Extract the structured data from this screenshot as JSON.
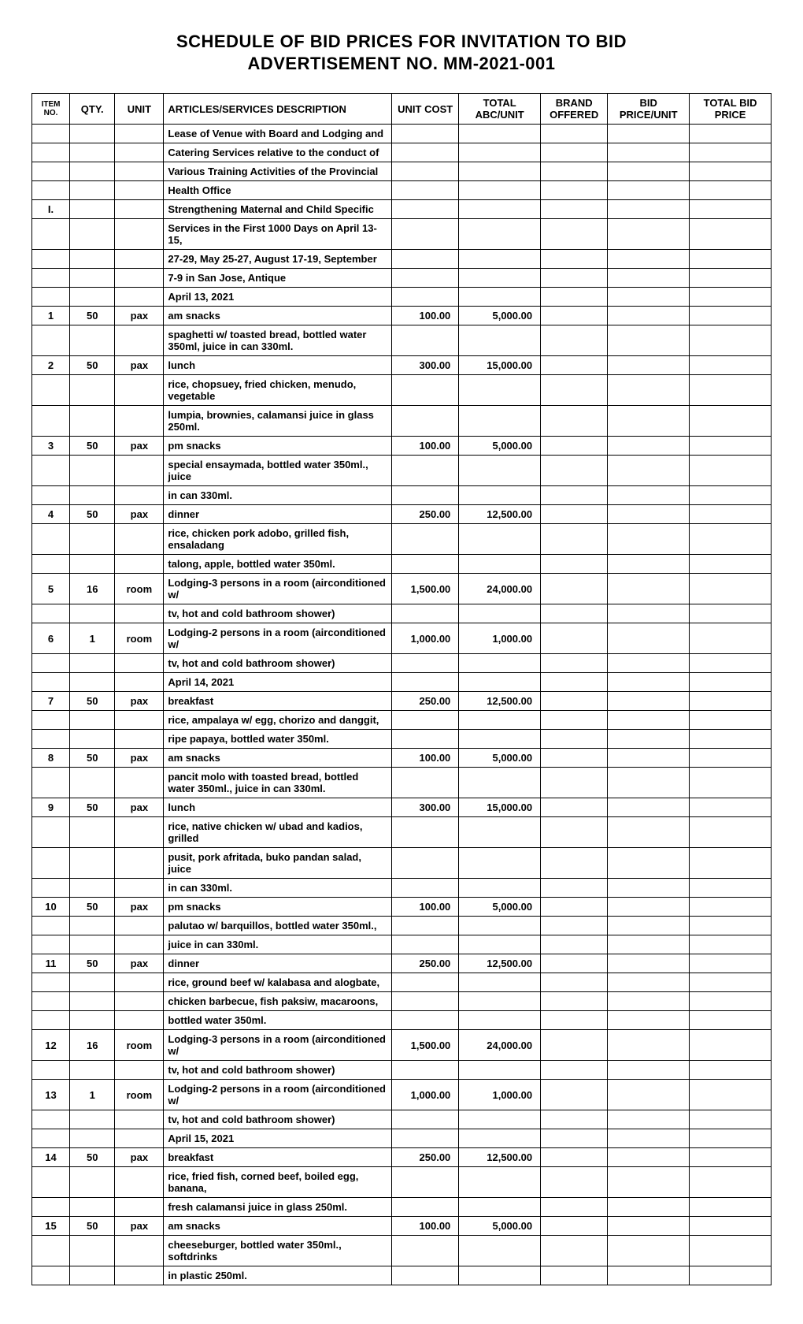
{
  "title": "SCHEDULE OF BID PRICES FOR INVITATION TO BID",
  "subtitle": "ADVERTISEMENT NO. MM-2021-001",
  "headers": {
    "item": "ITEM NO.",
    "qty": "QTY.",
    "unit": "UNIT",
    "desc": "ARTICLES/SERVICES DESCRIPTION",
    "cost": "UNIT COST",
    "abc": "TOTAL ABC/UNIT",
    "brand": "BRAND OFFERED",
    "bid": "BID PRICE/UNIT",
    "total": "TOTAL BID PRICE"
  },
  "rows": [
    {
      "item": "",
      "qty": "",
      "unit": "",
      "desc": "Lease of Venue with Board and Lodging and",
      "cost": "",
      "abc": ""
    },
    {
      "item": "",
      "qty": "",
      "unit": "",
      "desc": "Catering Services relative to  the conduct of",
      "cost": "",
      "abc": ""
    },
    {
      "item": "",
      "qty": "",
      "unit": "",
      "desc": "Various Training Activities of the Provincial",
      "cost": "",
      "abc": ""
    },
    {
      "item": "",
      "qty": "",
      "unit": "",
      "desc": "Health Office",
      "cost": "",
      "abc": ""
    },
    {
      "item": "I.",
      "qty": "",
      "unit": "",
      "desc": "Strengthening Maternal and Child Specific",
      "cost": "",
      "abc": ""
    },
    {
      "item": "",
      "qty": "",
      "unit": "",
      "desc": "Services in the First 1000 Days on April 13-15,",
      "cost": "",
      "abc": ""
    },
    {
      "item": "",
      "qty": "",
      "unit": "",
      "desc": "27-29, May 25-27, August 17-19, September",
      "cost": "",
      "abc": ""
    },
    {
      "item": "",
      "qty": "",
      "unit": "",
      "desc": "7-9 in San Jose, Antique",
      "cost": "",
      "abc": ""
    },
    {
      "item": "",
      "qty": "",
      "unit": "",
      "desc": "April 13, 2021",
      "cost": "",
      "abc": ""
    },
    {
      "item": "1",
      "qty": "50",
      "unit": "pax",
      "desc": "am snacks",
      "cost": "100.00",
      "abc": "5,000.00"
    },
    {
      "item": "",
      "qty": "",
      "unit": "",
      "desc": "spaghetti w/ toasted bread, bottled water 350ml, juice in can 330ml.",
      "cost": "",
      "abc": ""
    },
    {
      "item": "2",
      "qty": "50",
      "unit": "pax",
      "desc": "lunch",
      "cost": "300.00",
      "abc": "15,000.00"
    },
    {
      "item": "",
      "qty": "",
      "unit": "",
      "desc": "rice, chopsuey, fried chicken, menudo, vegetable",
      "cost": "",
      "abc": ""
    },
    {
      "item": "",
      "qty": "",
      "unit": "",
      "desc": "lumpia, brownies, calamansi juice in glass 250ml.",
      "cost": "",
      "abc": ""
    },
    {
      "item": "3",
      "qty": "50",
      "unit": "pax",
      "desc": "pm snacks",
      "cost": "100.00",
      "abc": "5,000.00"
    },
    {
      "item": "",
      "qty": "",
      "unit": "",
      "desc": "special ensaymada, bottled water 350ml., juice",
      "cost": "",
      "abc": ""
    },
    {
      "item": "",
      "qty": "",
      "unit": "",
      "desc": "in can 330ml.",
      "cost": "",
      "abc": ""
    },
    {
      "item": "4",
      "qty": "50",
      "unit": "pax",
      "desc": "dinner",
      "cost": "250.00",
      "abc": "12,500.00"
    },
    {
      "item": "",
      "qty": "",
      "unit": "",
      "desc": "rice, chicken pork adobo, grilled fish, ensaladang",
      "cost": "",
      "abc": ""
    },
    {
      "item": "",
      "qty": "",
      "unit": "",
      "desc": "talong, apple, bottled water 350ml.",
      "cost": "",
      "abc": ""
    },
    {
      "item": "5",
      "qty": "16",
      "unit": "room",
      "desc": "Lodging-3 persons in a room (airconditioned w/",
      "cost": "1,500.00",
      "abc": "24,000.00"
    },
    {
      "item": "",
      "qty": "",
      "unit": "",
      "desc": "tv, hot and cold bathroom shower)",
      "cost": "",
      "abc": ""
    },
    {
      "item": "6",
      "qty": "1",
      "unit": "room",
      "desc": "Lodging-2 persons in a room (airconditioned w/",
      "cost": "1,000.00",
      "abc": "1,000.00"
    },
    {
      "item": "",
      "qty": "",
      "unit": "",
      "desc": "tv, hot and cold bathroom shower)",
      "cost": "",
      "abc": ""
    },
    {
      "item": "",
      "qty": "",
      "unit": "",
      "desc": "April 14, 2021",
      "cost": "",
      "abc": ""
    },
    {
      "item": "7",
      "qty": "50",
      "unit": "pax",
      "desc": "breakfast",
      "cost": "250.00",
      "abc": "12,500.00"
    },
    {
      "item": "",
      "qty": "",
      "unit": "",
      "desc": "rice, ampalaya w/ egg, chorizo and danggit,",
      "cost": "",
      "abc": ""
    },
    {
      "item": "",
      "qty": "",
      "unit": "",
      "desc": "ripe papaya, bottled water 350ml.",
      "cost": "",
      "abc": ""
    },
    {
      "item": "8",
      "qty": "50",
      "unit": "pax",
      "desc": "am snacks",
      "cost": "100.00",
      "abc": "5,000.00"
    },
    {
      "item": "",
      "qty": "",
      "unit": "",
      "desc": "pancit molo with toasted bread, bottled water 350ml., juice in can 330ml.",
      "cost": "",
      "abc": ""
    },
    {
      "item": "9",
      "qty": "50",
      "unit": "pax",
      "desc": "lunch",
      "cost": "300.00",
      "abc": "15,000.00"
    },
    {
      "item": "",
      "qty": "",
      "unit": "",
      "desc": "rice, native chicken w/ ubad and kadios, grilled",
      "cost": "",
      "abc": ""
    },
    {
      "item": "",
      "qty": "",
      "unit": "",
      "desc": "pusit, pork afritada, buko pandan salad, juice",
      "cost": "",
      "abc": ""
    },
    {
      "item": "",
      "qty": "",
      "unit": "",
      "desc": "in can 330ml.",
      "cost": "",
      "abc": ""
    },
    {
      "item": "10",
      "qty": "50",
      "unit": "pax",
      "desc": "pm snacks",
      "cost": "100.00",
      "abc": "5,000.00"
    },
    {
      "item": "",
      "qty": "",
      "unit": "",
      "desc": "palutao w/ barquillos, bottled water 350ml.,",
      "cost": "",
      "abc": ""
    },
    {
      "item": "",
      "qty": "",
      "unit": "",
      "desc": "juice in can 330ml.",
      "cost": "",
      "abc": ""
    },
    {
      "item": "11",
      "qty": "50",
      "unit": "pax",
      "desc": "dinner",
      "cost": "250.00",
      "abc": "12,500.00"
    },
    {
      "item": "",
      "qty": "",
      "unit": "",
      "desc": "rice, ground beef w/ kalabasa and alogbate,",
      "cost": "",
      "abc": ""
    },
    {
      "item": "",
      "qty": "",
      "unit": "",
      "desc": "chicken barbecue, fish paksiw, macaroons,",
      "cost": "",
      "abc": ""
    },
    {
      "item": "",
      "qty": "",
      "unit": "",
      "desc": "bottled water 350ml.",
      "cost": "",
      "abc": ""
    },
    {
      "item": "12",
      "qty": "16",
      "unit": "room",
      "desc": "Lodging-3 persons in a room (airconditioned w/",
      "cost": "1,500.00",
      "abc": "24,000.00"
    },
    {
      "item": "",
      "qty": "",
      "unit": "",
      "desc": "tv, hot and cold bathroom shower)",
      "cost": "",
      "abc": ""
    },
    {
      "item": "13",
      "qty": "1",
      "unit": "room",
      "desc": "Lodging-2 persons in a room (airconditioned w/",
      "cost": "1,000.00",
      "abc": "1,000.00"
    },
    {
      "item": "",
      "qty": "",
      "unit": "",
      "desc": "tv, hot and cold bathroom shower)",
      "cost": "",
      "abc": ""
    },
    {
      "item": "",
      "qty": "",
      "unit": "",
      "desc": "April 15, 2021",
      "cost": "",
      "abc": ""
    },
    {
      "item": "14",
      "qty": "50",
      "unit": "pax",
      "desc": "breakfast",
      "cost": "250.00",
      "abc": "12,500.00"
    },
    {
      "item": "",
      "qty": "",
      "unit": "",
      "desc": "rice, fried fish, corned beef, boiled egg, banana,",
      "cost": "",
      "abc": ""
    },
    {
      "item": "",
      "qty": "",
      "unit": "",
      "desc": "fresh calamansi juice in glass 250ml.",
      "cost": "",
      "abc": ""
    },
    {
      "item": "15",
      "qty": "50",
      "unit": "pax",
      "desc": "am snacks",
      "cost": "100.00",
      "abc": "5,000.00"
    },
    {
      "item": "",
      "qty": "",
      "unit": "",
      "desc": "cheeseburger, bottled water 350ml., softdrinks",
      "cost": "",
      "abc": ""
    },
    {
      "item": "",
      "qty": "",
      "unit": "",
      "desc": "in plastic 250ml.",
      "cost": "",
      "abc": ""
    }
  ]
}
